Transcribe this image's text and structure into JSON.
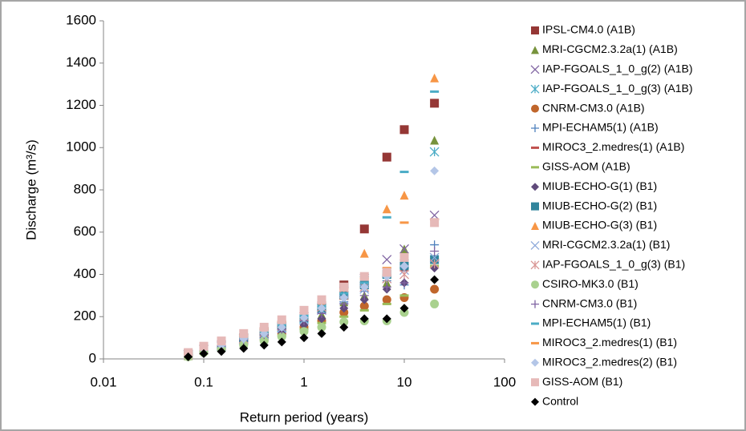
{
  "chart_data": {
    "type": "scatter",
    "xlabel": "Return period (years)",
    "ylabel": "Discharge (m³/s)",
    "xscale": "log",
    "xlim": [
      0.01,
      100
    ],
    "xticks": [
      0.01,
      0.1,
      1,
      10,
      100
    ],
    "ylim": [
      0,
      1600
    ],
    "yticks": [
      0,
      200,
      400,
      600,
      800,
      1000,
      1200,
      1400,
      1600
    ],
    "grid": false,
    "legend": "right",
    "x": [
      0.07,
      0.1,
      0.15,
      0.25,
      0.4,
      0.6,
      1,
      1.5,
      2.5,
      4,
      6.7,
      10,
      20
    ],
    "series": [
      {
        "name": "IPSL-CM4.0 (A1B)",
        "color": "#953735",
        "marker": "square",
        "values": [
          20,
          50,
          70,
          100,
          130,
          160,
          200,
          250,
          350,
          615,
          955,
          1085,
          1210
        ]
      },
      {
        "name": "MRI-CGCM2.3.2a(1) (A1B)",
        "color": "#77933c",
        "marker": "triangle",
        "values": [
          15,
          40,
          55,
          80,
          100,
          130,
          170,
          210,
          270,
          300,
          360,
          520,
          1035
        ]
      },
      {
        "name": "IAP-FGOALS_1_0_g(2) (A1B)",
        "color": "#8064a2",
        "marker": "x",
        "values": [
          20,
          45,
          65,
          95,
          125,
          155,
          200,
          250,
          320,
          380,
          470,
          520,
          680
        ]
      },
      {
        "name": "IAP-FGOALS_1_0_g(3) (A1B)",
        "color": "#4bacc6",
        "marker": "star",
        "values": [
          20,
          45,
          60,
          90,
          120,
          150,
          190,
          240,
          300,
          370,
          410,
          450,
          980
        ]
      },
      {
        "name": "CNRM-CM3.0 (A1B)",
        "color": "#c0662c",
        "marker": "circle",
        "values": [
          15,
          35,
          50,
          75,
          95,
          120,
          150,
          180,
          220,
          250,
          280,
          290,
          330
        ]
      },
      {
        "name": "MPI-ECHAM5(1) (A1B)",
        "color": "#4f81bd",
        "marker": "plus",
        "values": [
          20,
          40,
          60,
          85,
          110,
          140,
          180,
          220,
          270,
          320,
          370,
          350,
          540
        ]
      },
      {
        "name": "MIROC3_2.medres(1) (A1B)",
        "color": "#c0504d",
        "marker": "dash",
        "values": [
          20,
          45,
          65,
          95,
          120,
          150,
          190,
          230,
          290,
          340,
          390,
          420,
          470
        ]
      },
      {
        "name": "GISS-AOM (A1B)",
        "color": "#9bbb59",
        "marker": "dash",
        "values": [
          15,
          35,
          50,
          70,
          90,
          110,
          140,
          170,
          200,
          230,
          260,
          300,
          440
        ]
      },
      {
        "name": "MIUB-ECHO-G(1) (B1)",
        "color": "#604a7b",
        "marker": "diamond",
        "values": [
          20,
          40,
          55,
          80,
          100,
          125,
          160,
          190,
          240,
          280,
          330,
          360,
          430
        ]
      },
      {
        "name": "MIUB-ECHO-G(2) (B1)",
        "color": "#31859c",
        "marker": "square",
        "values": [
          25,
          50,
          70,
          100,
          125,
          155,
          195,
          240,
          300,
          350,
          400,
          440,
          470
        ]
      },
      {
        "name": "MIUB-ECHO-G(3) (B1)",
        "color": "#f79646",
        "marker": "triangle",
        "values": [
          25,
          55,
          80,
          115,
          145,
          180,
          225,
          270,
          340,
          500,
          710,
          775,
          1330
        ]
      },
      {
        "name": "MRI-CGCM2.3.2a(1) (B1)",
        "color": "#8ea9db",
        "marker": "x",
        "values": [
          20,
          45,
          60,
          90,
          115,
          145,
          185,
          230,
          280,
          330,
          380,
          420,
          480
        ]
      },
      {
        "name": "IAP-FGOALS_1_0_g(3) (B1)",
        "color": "#d99694",
        "marker": "star",
        "values": [
          20,
          45,
          65,
          95,
          125,
          155,
          200,
          245,
          300,
          340,
          380,
          400,
          450
        ]
      },
      {
        "name": "CSIRO-MK3.0 (B1)",
        "color": "#a9d18e",
        "marker": "circle",
        "values": [
          10,
          30,
          45,
          65,
          85,
          105,
          130,
          150,
          175,
          180,
          180,
          220,
          260
        ]
      },
      {
        "name": "CNRM-CM3.0 (B1)",
        "color": "#8064a2",
        "marker": "plus",
        "values": [
          20,
          45,
          60,
          90,
          115,
          140,
          180,
          215,
          260,
          300,
          340,
          360,
          510
        ]
      },
      {
        "name": "MPI-ECHAM5(1) (B1)",
        "color": "#4bacc6",
        "marker": "dash",
        "values": [
          25,
          50,
          70,
          100,
          130,
          160,
          205,
          250,
          310,
          360,
          670,
          885,
          1265
        ]
      },
      {
        "name": "MIROC3_2.medres(1) (B1)",
        "color": "#f79646",
        "marker": "dash",
        "values": [
          25,
          55,
          75,
          110,
          140,
          175,
          220,
          270,
          330,
          380,
          430,
          645,
          660
        ]
      },
      {
        "name": "MIROC3_2.medres(2) (B1)",
        "color": "#b4c6e7",
        "marker": "diamond",
        "values": [
          20,
          45,
          65,
          95,
          120,
          150,
          195,
          240,
          290,
          340,
          390,
          440,
          890
        ]
      },
      {
        "name": "GISS-AOM (B1)",
        "color": "#e6b9b8",
        "marker": "square",
        "values": [
          30,
          60,
          85,
          120,
          150,
          185,
          230,
          280,
          340,
          390,
          410,
          480,
          645
        ]
      },
      {
        "name": "Control",
        "color": "#000000",
        "marker": "diamond",
        "values": [
          10,
          25,
          35,
          50,
          65,
          80,
          100,
          120,
          150,
          190,
          190,
          240,
          375
        ]
      }
    ]
  }
}
